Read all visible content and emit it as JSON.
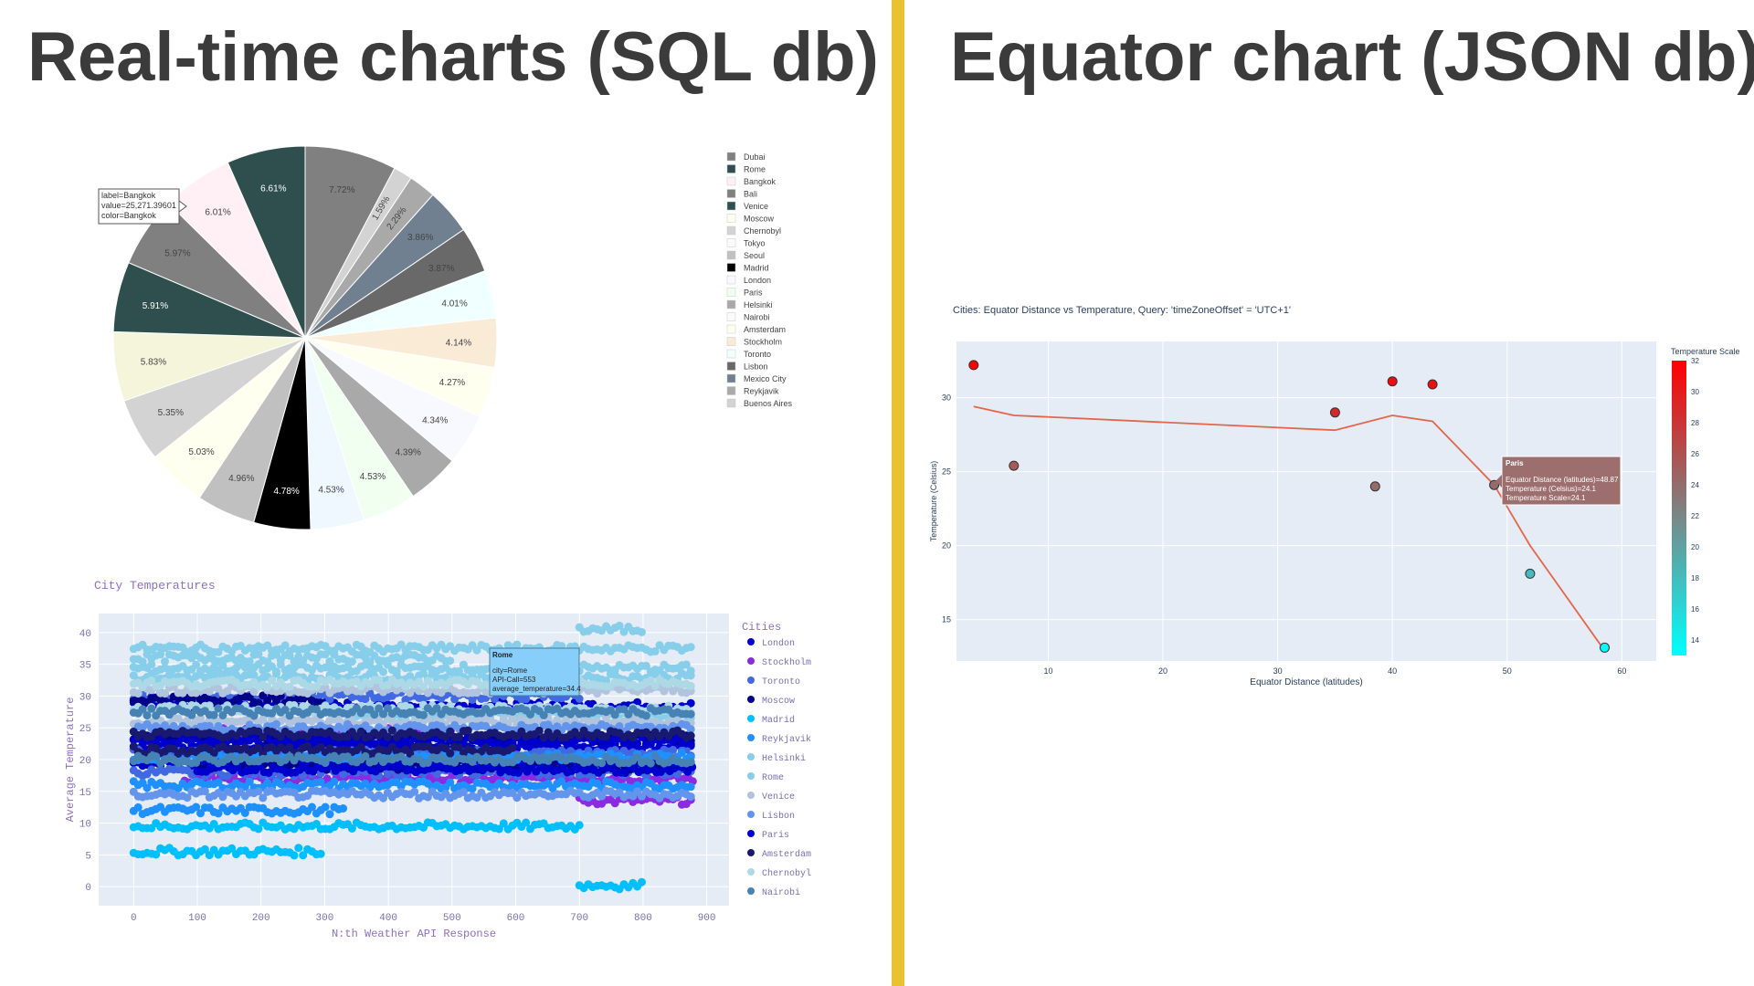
{
  "headings": {
    "left": "Real-time charts (SQL db)",
    "right": "Equator chart (JSON db)"
  },
  "chart_data": [
    {
      "type": "pie",
      "labels": [
        "Dubai",
        "Rome",
        "Bangkok",
        "Bali",
        "Venice",
        "Moscow",
        "Chernobyl",
        "Tokyo",
        "Seoul",
        "Madrid",
        "London",
        "Paris",
        "Helsinki",
        "Nairobi",
        "Amsterdam",
        "Stockholm",
        "Toronto",
        "Lisbon",
        "Mexico City",
        "Reykjavik",
        "Buenos Aires"
      ],
      "legend_colors": [
        "#808080",
        "#2f4f4f",
        "#fff0f5",
        "#808080",
        "#2f4f4f",
        "#fffff0",
        "#d3d3d3",
        "#fffafa",
        "#c0c0c0",
        "#000000",
        "#f8f8ff",
        "#f0fff0",
        "#a9a9a9",
        "#fafafa",
        "#fffff0",
        "#faebd7",
        "#f0ffff",
        "#696969",
        "#708090",
        "#a9a9a9",
        "#d3d3d3"
      ],
      "slices": [
        {
          "value": 7.72,
          "label": "7.72%",
          "color": "#808080"
        },
        {
          "value": 1.59,
          "label": "1.59%",
          "color": "#d3d3d3"
        },
        {
          "value": 2.29,
          "label": "2.29%",
          "color": "#a9a9a9"
        },
        {
          "value": 3.86,
          "label": "3.86%",
          "color": "#708090"
        },
        {
          "value": 3.87,
          "label": "3.87%",
          "color": "#696969"
        },
        {
          "value": 4.01,
          "label": "4.01%",
          "color": "#f0ffff"
        },
        {
          "value": 4.14,
          "label": "4.14%",
          "color": "#faebd7"
        },
        {
          "value": 4.27,
          "label": "4.27%",
          "color": "#fffff0"
        },
        {
          "value": 4.34,
          "label": "4.34%",
          "color": "#f8f8ff"
        },
        {
          "value": 4.39,
          "label": "4.39%",
          "color": "#a9a9a9"
        },
        {
          "value": 4.53,
          "label": "4.53%",
          "color": "#f0fff0"
        },
        {
          "value": 4.53,
          "label": "4.53%",
          "color": "#f0f8ff"
        },
        {
          "value": 4.78,
          "label": "4.78%",
          "color": "#000000"
        },
        {
          "value": 4.96,
          "label": "4.96%",
          "color": "#c0c0c0"
        },
        {
          "value": 5.03,
          "label": "5.03%",
          "color": "#fffff0"
        },
        {
          "value": 5.35,
          "label": "5.35%",
          "color": "#d3d3d3"
        },
        {
          "value": 5.83,
          "label": "5.83%",
          "color": "#f5f5dc"
        },
        {
          "value": 5.91,
          "label": "5.91%",
          "color": "#2f4f4f"
        },
        {
          "value": 5.97,
          "label": "5.97%",
          "color": "#808080"
        },
        {
          "value": 6.01,
          "label": "6.01%",
          "color": "#fff0f5"
        },
        {
          "value": 6.61,
          "label": "6.61%",
          "color": "#2f4f4f"
        }
      ],
      "tooltip": {
        "lines": [
          "label=Bangkok",
          "value=25,271.39601",
          "color=Bangkok"
        ]
      }
    },
    {
      "type": "scatter",
      "title": "City Temperatures",
      "xlabel": "N:th Weather API Response",
      "ylabel": "Average Temperature",
      "xlim": [
        -55,
        935
      ],
      "ylim": [
        -3,
        43
      ],
      "xticks": [
        0,
        100,
        200,
        300,
        400,
        500,
        600,
        700,
        800,
        900
      ],
      "yticks": [
        0,
        5,
        10,
        15,
        20,
        25,
        30,
        35,
        40
      ],
      "legend_title": "Cities",
      "series": [
        {
          "name": "London",
          "color": "#0000cd",
          "segments": [
            [
              0,
              880,
              19.5
            ],
            [
              0,
              880,
              22
            ],
            [
              0,
              880,
              28.5
            ]
          ]
        },
        {
          "name": "Stockholm",
          "color": "#8a2be2",
          "segments": [
            [
              50,
              500,
              24.5
            ],
            [
              80,
              880,
              17
            ],
            [
              700,
              880,
              13.5
            ]
          ]
        },
        {
          "name": "Toronto",
          "color": "#4169e1",
          "segments": [
            [
              0,
              880,
              21
            ],
            [
              0,
              700,
              30
            ],
            [
              0,
              880,
              18
            ]
          ]
        },
        {
          "name": "Moscow",
          "color": "#00008b",
          "segments": [
            [
              0,
              880,
              23.5
            ],
            [
              100,
              880,
              19
            ],
            [
              0,
              300,
              29.5
            ]
          ]
        },
        {
          "name": "Madrid",
          "color": "#00bfff",
          "segments": [
            [
              0,
              700,
              9.5
            ],
            [
              0,
              300,
              5.5
            ],
            [
              700,
              800,
              0.2
            ]
          ]
        },
        {
          "name": "Reykjavik",
          "color": "#1e90ff",
          "segments": [
            [
              0,
              880,
              20.5
            ],
            [
              0,
              330,
              12
            ],
            [
              0,
              880,
              16
            ]
          ]
        },
        {
          "name": "Helsinki",
          "color": "#87ceeb",
          "segments": [
            [
              0,
              880,
              33
            ],
            [
              350,
              880,
              27
            ],
            [
              0,
              500,
              36
            ]
          ]
        },
        {
          "name": "Rome",
          "color": "#87ceeb",
          "segments": [
            [
              0,
              880,
              37.5
            ],
            [
              0,
              880,
              34.4
            ],
            [
              700,
              800,
              40.5
            ]
          ]
        },
        {
          "name": "Venice",
          "color": "#b0c4de",
          "segments": [
            [
              0,
              880,
              26
            ],
            [
              0,
              880,
              31
            ]
          ]
        },
        {
          "name": "Lisbon",
          "color": "#6495ed",
          "segments": [
            [
              0,
              880,
              25
            ],
            [
              0,
              880,
              14.5
            ]
          ]
        },
        {
          "name": "Paris",
          "color": "#0000cd",
          "segments": [
            [
              0,
              880,
              23
            ],
            [
              100,
              880,
              18.5
            ]
          ]
        },
        {
          "name": "Amsterdam",
          "color": "#191970",
          "segments": [
            [
              0,
              880,
              24
            ],
            [
              0,
              600,
              21.5
            ]
          ]
        },
        {
          "name": "Chernobyl",
          "color": "#add8e6",
          "segments": [
            [
              0,
              880,
              28
            ],
            [
              0,
              880,
              32
            ]
          ]
        },
        {
          "name": "Nairobi",
          "color": "#4682b4",
          "segments": [
            [
              0,
              880,
              27.5
            ],
            [
              0,
              880,
              20
            ]
          ]
        }
      ],
      "tooltip": {
        "title": "Rome",
        "lines": [
          "city=Rome",
          "API-Call=553",
          "average_temperature=34.4"
        ]
      }
    },
    {
      "type": "scatter",
      "title": "Cities: Equator Distance vs Temperature, Query: 'timeZoneOffset' = 'UTC+1'",
      "xlabel": "Equator Distance (latitudes)",
      "ylabel": "Temperature (Celsius)",
      "xlim": [
        2,
        63
      ],
      "ylim": [
        12.2,
        33.8
      ],
      "xticks": [
        10,
        20,
        30,
        40,
        50,
        60
      ],
      "yticks": [
        15,
        20,
        25,
        30
      ],
      "points": [
        {
          "x": 3.5,
          "y": 32.2
        },
        {
          "x": 7,
          "y": 25.4
        },
        {
          "x": 35,
          "y": 29
        },
        {
          "x": 38.5,
          "y": 24
        },
        {
          "x": 40,
          "y": 31.1
        },
        {
          "x": 43.5,
          "y": 30.9
        },
        {
          "x": 48.87,
          "y": 24.1
        },
        {
          "x": 52,
          "y": 18.1
        },
        {
          "x": 58.5,
          "y": 13.1
        }
      ],
      "trend": [
        {
          "x": 3.5,
          "y": 29.4
        },
        {
          "x": 7,
          "y": 28.8
        },
        {
          "x": 35,
          "y": 27.8
        },
        {
          "x": 40,
          "y": 28.8
        },
        {
          "x": 43.5,
          "y": 28.4
        },
        {
          "x": 48.87,
          "y": 24.1
        },
        {
          "x": 52,
          "y": 20
        },
        {
          "x": 58.5,
          "y": 12.9
        }
      ],
      "trend_color": "#e4654a",
      "colorbar": {
        "title": "Temperature Scale",
        "min": 13,
        "max": 32,
        "ticks": [
          14,
          16,
          18,
          20,
          22,
          24,
          26,
          28,
          30,
          32
        ],
        "low_color": "#00ffff",
        "mid_color": "#808080",
        "high_color": "#ff0000"
      },
      "tooltip": {
        "title": "Paris",
        "lines": [
          "Equator Distance (latitudes)=48.87",
          "Temperature (Celsius)=24.1",
          "Temperature Scale=24.1"
        ]
      }
    }
  ]
}
